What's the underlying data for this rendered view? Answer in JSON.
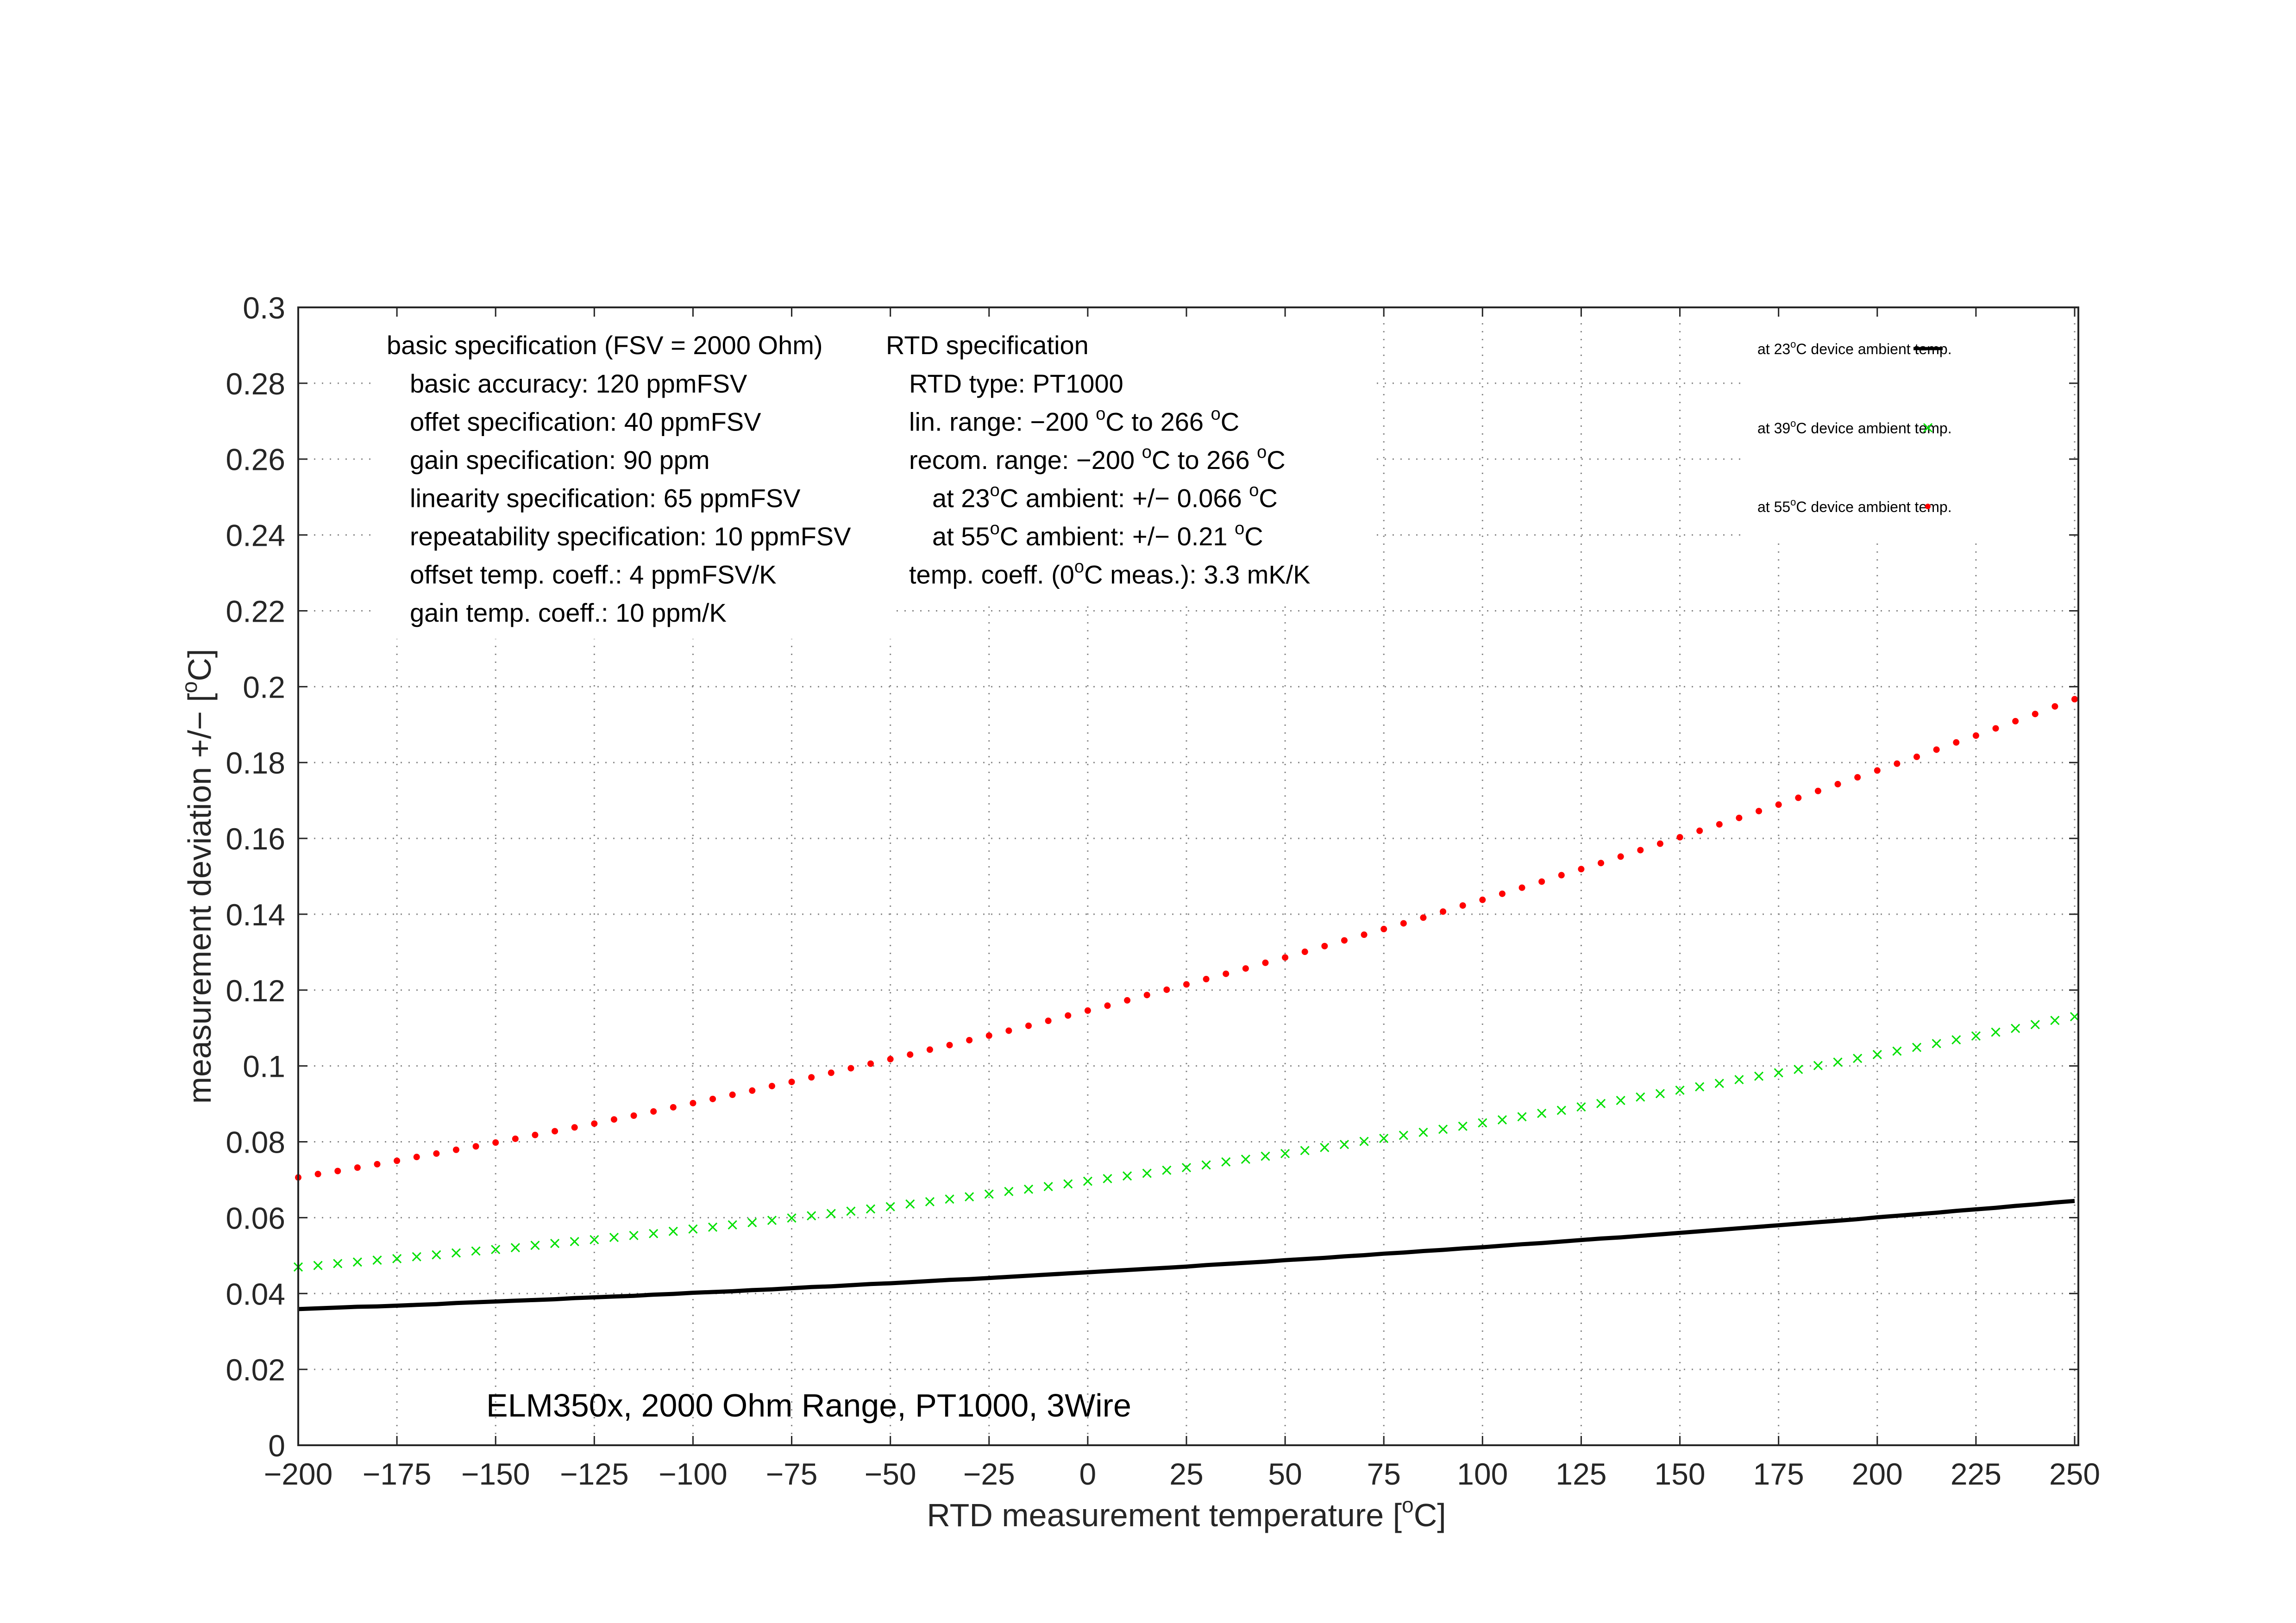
{
  "chart_data": {
    "type": "line",
    "title": "ELM350x, 2000 Ohm Range, PT1000, 3Wire",
    "xlabel": "RTD measurement temperature [°C]",
    "ylabel": "measurement deviation +/− [°C]",
    "xlim": [
      -200,
      250
    ],
    "ylim": [
      0,
      0.3
    ],
    "grid": true,
    "legend_position": "top-right",
    "x_ticks": [
      "−200",
      "−175",
      "−150",
      "−125",
      "−100",
      "−75",
      "−50",
      "−25",
      "0",
      "25",
      "50",
      "75",
      "100",
      "125",
      "150",
      "175",
      "200",
      "225",
      "250"
    ],
    "y_ticks": [
      "0",
      "0.02",
      "0.04",
      "0.06",
      "0.08",
      "0.1",
      "0.12",
      "0.14",
      "0.16",
      "0.18",
      "0.2",
      "0.22",
      "0.24",
      "0.26",
      "0.28",
      "0.3"
    ],
    "x": [
      -200,
      -195,
      -190,
      -185,
      -180,
      -175,
      -170,
      -165,
      -160,
      -155,
      -150,
      -145,
      -140,
      -135,
      -130,
      -125,
      -120,
      -115,
      -110,
      -105,
      -100,
      -95,
      -90,
      -85,
      -80,
      -75,
      -70,
      -65,
      -60,
      -55,
      -50,
      -45,
      -40,
      -35,
      -30,
      -25,
      -20,
      -15,
      -10,
      -5,
      0,
      5,
      10,
      15,
      20,
      25,
      30,
      35,
      40,
      45,
      50,
      55,
      60,
      65,
      70,
      75,
      80,
      85,
      90,
      95,
      100,
      105,
      110,
      115,
      120,
      125,
      130,
      135,
      140,
      145,
      150,
      155,
      160,
      165,
      170,
      175,
      180,
      185,
      190,
      195,
      200,
      205,
      210,
      215,
      220,
      225,
      230,
      235,
      240,
      245,
      250
    ],
    "series": [
      {
        "name": "at 23°C device ambient temp.",
        "style": "line",
        "color": "#000000",
        "values": [
          0.0359,
          0.0361,
          0.0363,
          0.0365,
          0.0366,
          0.0368,
          0.037,
          0.0372,
          0.0375,
          0.0377,
          0.0379,
          0.0381,
          0.0383,
          0.0385,
          0.0388,
          0.039,
          0.0392,
          0.0394,
          0.0397,
          0.0399,
          0.0402,
          0.0404,
          0.0406,
          0.0409,
          0.0411,
          0.0414,
          0.0417,
          0.0419,
          0.0422,
          0.0425,
          0.0427,
          0.043,
          0.0433,
          0.0436,
          0.0438,
          0.0441,
          0.0444,
          0.0447,
          0.045,
          0.0453,
          0.0456,
          0.0459,
          0.0462,
          0.0465,
          0.0468,
          0.0471,
          0.0475,
          0.0478,
          0.0481,
          0.0484,
          0.0488,
          0.0491,
          0.0494,
          0.0498,
          0.0501,
          0.0505,
          0.0508,
          0.0512,
          0.0515,
          0.0519,
          0.0522,
          0.0526,
          0.053,
          0.0533,
          0.0537,
          0.0541,
          0.0545,
          0.0548,
          0.0552,
          0.0556,
          0.056,
          0.0564,
          0.0568,
          0.0572,
          0.0576,
          0.058,
          0.0584,
          0.0588,
          0.0592,
          0.0596,
          0.0601,
          0.0605,
          0.0609,
          0.0613,
          0.0618,
          0.0622,
          0.0626,
          0.0631,
          0.0635,
          0.064,
          0.0644
        ]
      },
      {
        "name": "at 39°C device ambient temp.",
        "style": "x-markers",
        "color": "#00e000",
        "values": [
          0.047,
          0.0474,
          0.0479,
          0.0483,
          0.0488,
          0.0492,
          0.0497,
          0.0502,
          0.0507,
          0.0512,
          0.0516,
          0.0521,
          0.0527,
          0.0532,
          0.0537,
          0.0542,
          0.0548,
          0.0553,
          0.0558,
          0.0564,
          0.057,
          0.0575,
          0.0581,
          0.0587,
          0.0593,
          0.0599,
          0.0605,
          0.0611,
          0.0617,
          0.0623,
          0.0629,
          0.0636,
          0.0642,
          0.0649,
          0.0655,
          0.0662,
          0.0669,
          0.0675,
          0.0682,
          0.0689,
          0.0696,
          0.0703,
          0.071,
          0.0717,
          0.0725,
          0.0732,
          0.0739,
          0.0747,
          0.0754,
          0.0762,
          0.0769,
          0.0777,
          0.0785,
          0.0793,
          0.0801,
          0.0809,
          0.0817,
          0.0825,
          0.0833,
          0.0841,
          0.085,
          0.0858,
          0.0866,
          0.0875,
          0.0883,
          0.0892,
          0.0901,
          0.0909,
          0.0918,
          0.0927,
          0.0936,
          0.0945,
          0.0954,
          0.0964,
          0.0973,
          0.0982,
          0.0991,
          0.1001,
          0.101,
          0.102,
          0.103,
          0.1039,
          0.1049,
          0.1059,
          0.1069,
          0.1079,
          0.1089,
          0.1099,
          0.1109,
          0.112,
          0.113
        ]
      },
      {
        "name": "at 55°C device ambient temp.",
        "style": "dot-markers",
        "color": "#ff0000",
        "values": [
          0.0706,
          0.0715,
          0.0723,
          0.0732,
          0.0741,
          0.075,
          0.076,
          0.0769,
          0.0779,
          0.0788,
          0.0798,
          0.0808,
          0.0818,
          0.0828,
          0.0838,
          0.0848,
          0.0859,
          0.0869,
          0.088,
          0.0891,
          0.0902,
          0.0913,
          0.0924,
          0.0935,
          0.0947,
          0.0958,
          0.097,
          0.0982,
          0.0994,
          0.1006,
          0.1018,
          0.103,
          0.1043,
          0.1055,
          0.1068,
          0.108,
          0.1093,
          0.1106,
          0.1119,
          0.1133,
          0.1146,
          0.1159,
          0.1173,
          0.1187,
          0.1201,
          0.1215,
          0.1229,
          0.1243,
          0.1257,
          0.1272,
          0.1286,
          0.1301,
          0.1316,
          0.1331,
          0.1346,
          0.1361,
          0.1376,
          0.1391,
          0.1407,
          0.1423,
          0.1438,
          0.1454,
          0.147,
          0.1486,
          0.1503,
          0.1519,
          0.1535,
          0.1552,
          0.1569,
          0.1586,
          0.1603,
          0.162,
          0.1637,
          0.1654,
          0.1672,
          0.1689,
          0.1707,
          0.1725,
          0.1743,
          0.1761,
          0.1779,
          0.1797,
          0.1815,
          0.1834,
          0.1853,
          0.1871,
          0.189,
          0.1909,
          0.1928,
          0.1948,
          0.1967
        ]
      }
    ],
    "annotations": {
      "basic_spec": {
        "heading": "basic specification (FSV = 2000 Ohm)",
        "lines": [
          "basic accuracy: 120 ppmFSV",
          "offet specification: 40 ppmFSV",
          "gain specification: 90 ppm",
          "linearity specification: 65 ppmFSV",
          "repeatability specification: 10 ppmFSV",
          "offset temp. coeff.: 4 ppmFSV/K",
          "gain temp. coeff.: 10 ppm/K"
        ]
      },
      "rtd_spec": {
        "heading": "RTD specification",
        "lines": [
          {
            "text": "RTD type: PT1000",
            "indent": 1
          },
          {
            "text": "lin. range: −200 °C to 266 °C",
            "indent": 1
          },
          {
            "text": "recom. range: −200 °C to 266 °C",
            "indent": 1
          },
          {
            "text": "at 23°C ambient: +/− 0.066 °C",
            "indent": 2
          },
          {
            "text": "at 55°C ambient: +/− 0.21 °C",
            "indent": 2
          },
          {
            "text": "temp. coeff. (0°C meas.): 3.3 mK/K",
            "indent": 1
          }
        ]
      }
    }
  },
  "labels": {
    "title": "ELM350x, 2000 Ohm Range, PT1000, 3Wire",
    "xlabel_main": "RTD measurement temperature [",
    "xlabel_sup": "o",
    "xlabel_end": "C]",
    "ylabel_main": "measurement deviation +/− [",
    "ylabel_sup": "o",
    "ylabel_end": "C]"
  }
}
